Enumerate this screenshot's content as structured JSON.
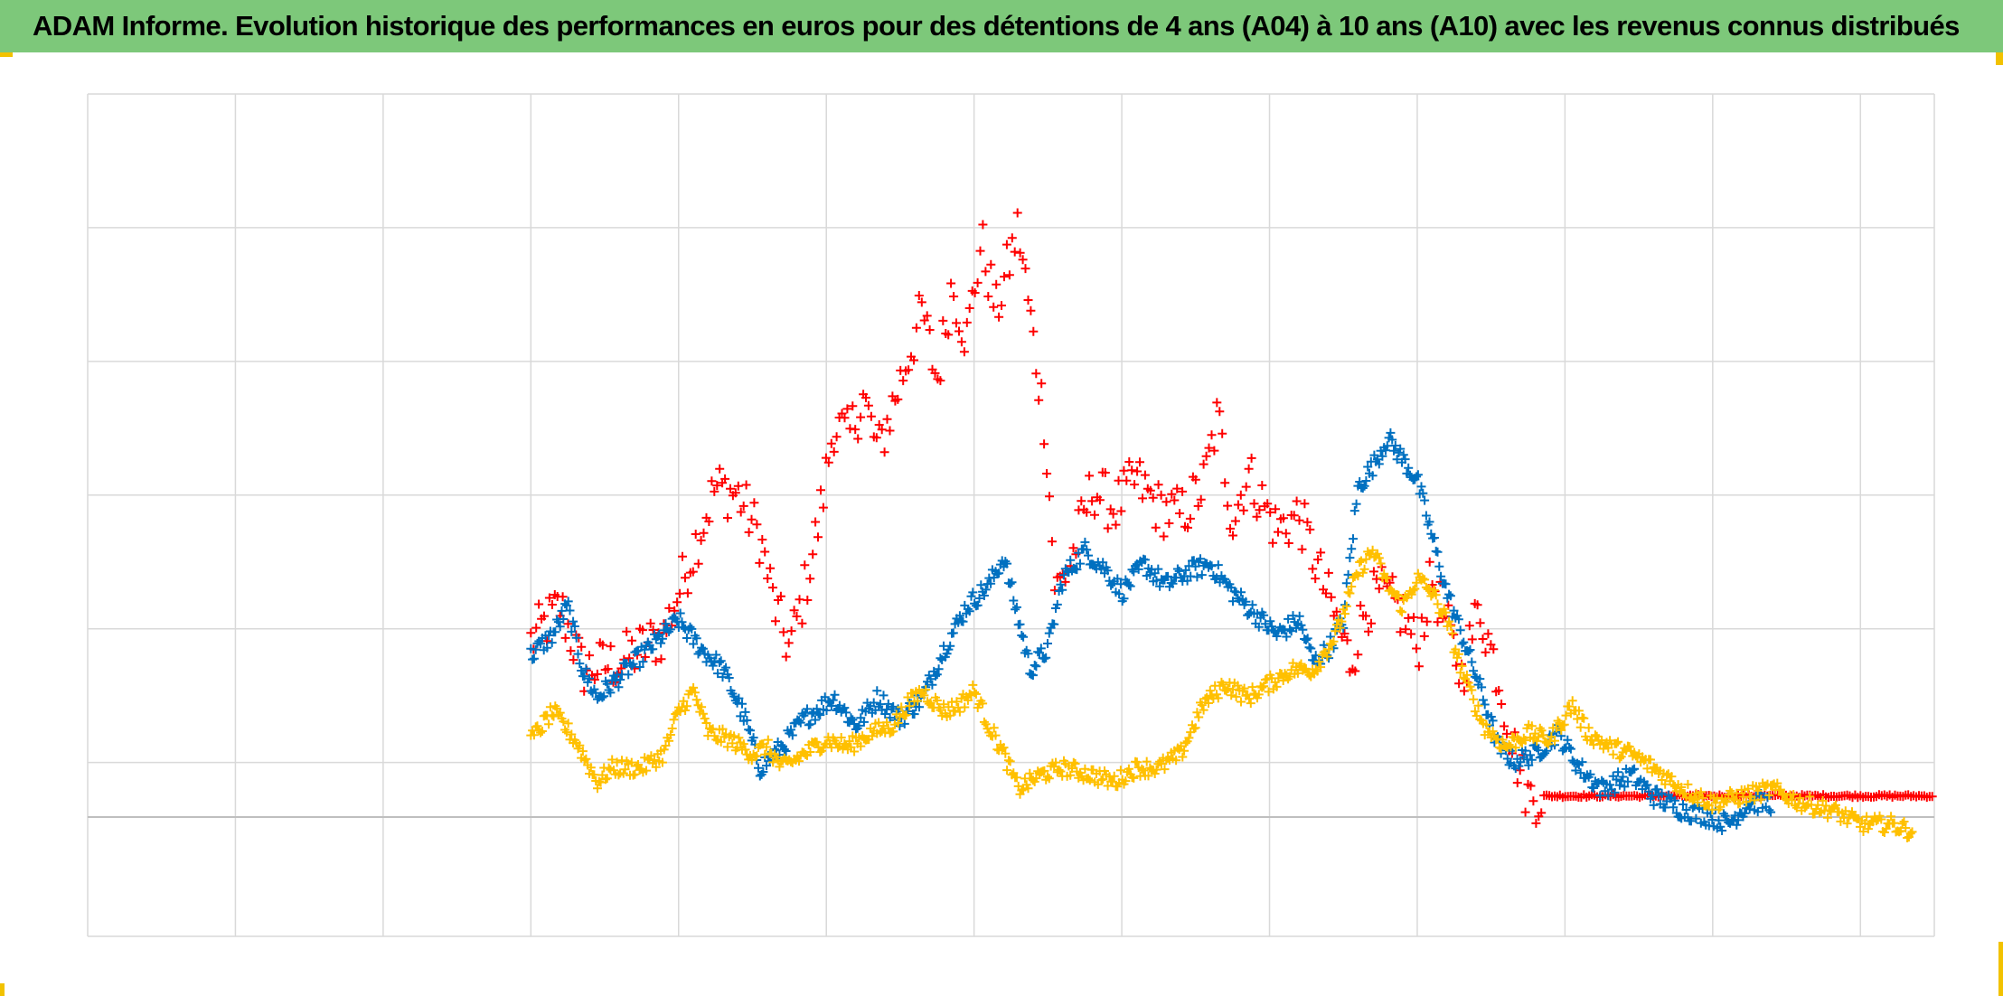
{
  "title": "ADAM Informe. Evolution historique des performances en euros pour des détentions de 4 ans (A04) à 10 ans (A10) avec les revenus connus distribués",
  "colors": {
    "header_bg": "#7dc87a",
    "frame_accent": "#f2c200",
    "grid": "#d9d9d9",
    "zero_line": "#bfbfbf"
  },
  "chart_data": {
    "type": "scatter",
    "marker": "plus",
    "grid": true,
    "legend": "none",
    "x_axis": {
      "range": [
        0,
        12.5
      ],
      "tick_labels_visible": false,
      "gridlines": 13
    },
    "y_axis": {
      "range": [
        -0.85,
        5.15
      ],
      "tick_labels_visible": false,
      "gridlines": 6,
      "baseline": 0
    },
    "series": [
      {
        "color": "#ff0000",
        "x_start": 3.0,
        "step": 0.018,
        "noise": 0.2,
        "anchors": [
          [
            3.0,
            1.25
          ],
          [
            3.2,
            1.5
          ],
          [
            3.35,
            1.05
          ],
          [
            3.6,
            1.1
          ],
          [
            3.9,
            1.3
          ],
          [
            4.1,
            1.9
          ],
          [
            4.25,
            2.35
          ],
          [
            4.4,
            2.3
          ],
          [
            4.55,
            2.0
          ],
          [
            4.65,
            1.5
          ],
          [
            4.75,
            1.2
          ],
          [
            4.85,
            1.6
          ],
          [
            4.95,
            2.1
          ],
          [
            5.05,
            2.8
          ],
          [
            5.15,
            2.7
          ],
          [
            5.25,
            3.0
          ],
          [
            5.35,
            2.6
          ],
          [
            5.5,
            3.1
          ],
          [
            5.65,
            3.6
          ],
          [
            5.75,
            3.1
          ],
          [
            5.85,
            3.8
          ],
          [
            5.95,
            3.4
          ],
          [
            6.05,
            4.1
          ],
          [
            6.15,
            3.6
          ],
          [
            6.3,
            4.2
          ],
          [
            6.4,
            3.4
          ],
          [
            6.48,
            2.8
          ],
          [
            6.55,
            1.6
          ],
          [
            6.65,
            1.8
          ],
          [
            6.8,
            2.35
          ],
          [
            6.95,
            2.2
          ],
          [
            7.1,
            2.4
          ],
          [
            7.25,
            2.2
          ],
          [
            7.4,
            2.15
          ],
          [
            7.55,
            2.35
          ],
          [
            7.65,
            2.85
          ],
          [
            7.75,
            2.1
          ],
          [
            7.85,
            2.45
          ],
          [
            7.95,
            2.25
          ],
          [
            8.05,
            2.05
          ],
          [
            8.2,
            2.15
          ],
          [
            8.35,
            1.7
          ],
          [
            8.45,
            1.4
          ],
          [
            8.55,
            1.1
          ],
          [
            8.65,
            1.5
          ],
          [
            8.75,
            1.6
          ],
          [
            8.9,
            1.45
          ],
          [
            9.0,
            1.2
          ],
          [
            9.1,
            1.7
          ],
          [
            9.2,
            1.35
          ],
          [
            9.3,
            1.0
          ],
          [
            9.42,
            1.5
          ],
          [
            9.55,
            1.0
          ],
          [
            9.65,
            0.5
          ],
          [
            9.75,
            0.15
          ],
          [
            9.85,
            0.15
          ],
          [
            12.5,
            0.15
          ]
        ]
      },
      {
        "color": "#0070c0",
        "x_start": 3.0,
        "step": 0.011,
        "noise": 0.07,
        "anchors": [
          [
            3.0,
            1.15
          ],
          [
            3.15,
            1.3
          ],
          [
            3.25,
            1.5
          ],
          [
            3.35,
            1.05
          ],
          [
            3.45,
            0.85
          ],
          [
            3.6,
            1.0
          ],
          [
            3.75,
            1.15
          ],
          [
            3.9,
            1.3
          ],
          [
            4.0,
            1.4
          ],
          [
            4.15,
            1.2
          ],
          [
            4.3,
            1.05
          ],
          [
            4.45,
            0.7
          ],
          [
            4.55,
            0.35
          ],
          [
            4.7,
            0.5
          ],
          [
            4.85,
            0.7
          ],
          [
            5.05,
            0.85
          ],
          [
            5.2,
            0.65
          ],
          [
            5.35,
            0.85
          ],
          [
            5.5,
            0.7
          ],
          [
            5.65,
            0.85
          ],
          [
            5.8,
            1.2
          ],
          [
            5.95,
            1.5
          ],
          [
            6.1,
            1.65
          ],
          [
            6.2,
            1.85
          ],
          [
            6.28,
            1.5
          ],
          [
            6.38,
            1.05
          ],
          [
            6.5,
            1.2
          ],
          [
            6.6,
            1.7
          ],
          [
            6.75,
            1.9
          ],
          [
            6.9,
            1.75
          ],
          [
            7.0,
            1.6
          ],
          [
            7.15,
            1.8
          ],
          [
            7.3,
            1.65
          ],
          [
            7.45,
            1.75
          ],
          [
            7.6,
            1.8
          ],
          [
            7.75,
            1.6
          ],
          [
            7.9,
            1.45
          ],
          [
            8.05,
            1.3
          ],
          [
            8.2,
            1.4
          ],
          [
            8.3,
            1.1
          ],
          [
            8.4,
            1.2
          ],
          [
            8.5,
            1.4
          ],
          [
            8.6,
            2.35
          ],
          [
            8.7,
            2.5
          ],
          [
            8.8,
            2.7
          ],
          [
            8.9,
            2.55
          ],
          [
            9.0,
            2.4
          ],
          [
            9.1,
            2.0
          ],
          [
            9.2,
            1.6
          ],
          [
            9.3,
            1.3
          ],
          [
            9.4,
            1.0
          ],
          [
            9.55,
            0.5
          ],
          [
            9.65,
            0.4
          ],
          [
            9.8,
            0.45
          ],
          [
            9.95,
            0.6
          ],
          [
            10.1,
            0.35
          ],
          [
            10.25,
            0.2
          ],
          [
            10.45,
            0.3
          ],
          [
            10.6,
            0.15
          ],
          [
            10.8,
            0.05
          ],
          [
            11.0,
            0.0
          ],
          [
            11.1,
            -0.05
          ],
          [
            11.25,
            0.1
          ],
          [
            11.4,
            0.1
          ]
        ]
      },
      {
        "color": "#ffc000",
        "x_start": 3.0,
        "step": 0.011,
        "noise": 0.06,
        "anchors": [
          [
            3.0,
            0.55
          ],
          [
            3.15,
            0.75
          ],
          [
            3.3,
            0.55
          ],
          [
            3.45,
            0.25
          ],
          [
            3.55,
            0.35
          ],
          [
            3.75,
            0.35
          ],
          [
            3.9,
            0.45
          ],
          [
            4.0,
            0.75
          ],
          [
            4.1,
            0.9
          ],
          [
            4.2,
            0.6
          ],
          [
            4.35,
            0.55
          ],
          [
            4.5,
            0.45
          ],
          [
            4.6,
            0.5
          ],
          [
            4.7,
            0.35
          ],
          [
            4.85,
            0.45
          ],
          [
            5.0,
            0.55
          ],
          [
            5.15,
            0.5
          ],
          [
            5.3,
            0.6
          ],
          [
            5.45,
            0.65
          ],
          [
            5.55,
            0.8
          ],
          [
            5.65,
            0.9
          ],
          [
            5.8,
            0.75
          ],
          [
            5.9,
            0.8
          ],
          [
            6.0,
            0.9
          ],
          [
            6.1,
            0.65
          ],
          [
            6.2,
            0.45
          ],
          [
            6.3,
            0.2
          ],
          [
            6.45,
            0.3
          ],
          [
            6.6,
            0.35
          ],
          [
            6.8,
            0.3
          ],
          [
            6.95,
            0.25
          ],
          [
            7.1,
            0.35
          ],
          [
            7.25,
            0.35
          ],
          [
            7.4,
            0.45
          ],
          [
            7.55,
            0.8
          ],
          [
            7.7,
            0.95
          ],
          [
            7.85,
            0.85
          ],
          [
            8.0,
            0.95
          ],
          [
            8.15,
            1.05
          ],
          [
            8.3,
            1.05
          ],
          [
            8.45,
            1.3
          ],
          [
            8.6,
            1.75
          ],
          [
            8.7,
            1.9
          ],
          [
            8.8,
            1.65
          ],
          [
            8.9,
            1.5
          ],
          [
            9.0,
            1.7
          ],
          [
            9.1,
            1.6
          ],
          [
            9.2,
            1.4
          ],
          [
            9.3,
            1.05
          ],
          [
            9.45,
            0.65
          ],
          [
            9.6,
            0.5
          ],
          [
            9.75,
            0.6
          ],
          [
            9.9,
            0.55
          ],
          [
            10.05,
            0.8
          ],
          [
            10.15,
            0.6
          ],
          [
            10.3,
            0.5
          ],
          [
            10.45,
            0.45
          ],
          [
            10.6,
            0.35
          ],
          [
            10.8,
            0.2
          ],
          [
            11.0,
            0.1
          ],
          [
            11.2,
            0.15
          ],
          [
            11.4,
            0.2
          ],
          [
            11.6,
            0.1
          ],
          [
            11.8,
            0.05
          ],
          [
            12.0,
            -0.05
          ],
          [
            12.2,
            -0.05
          ],
          [
            12.35,
            -0.1
          ]
        ]
      }
    ]
  }
}
